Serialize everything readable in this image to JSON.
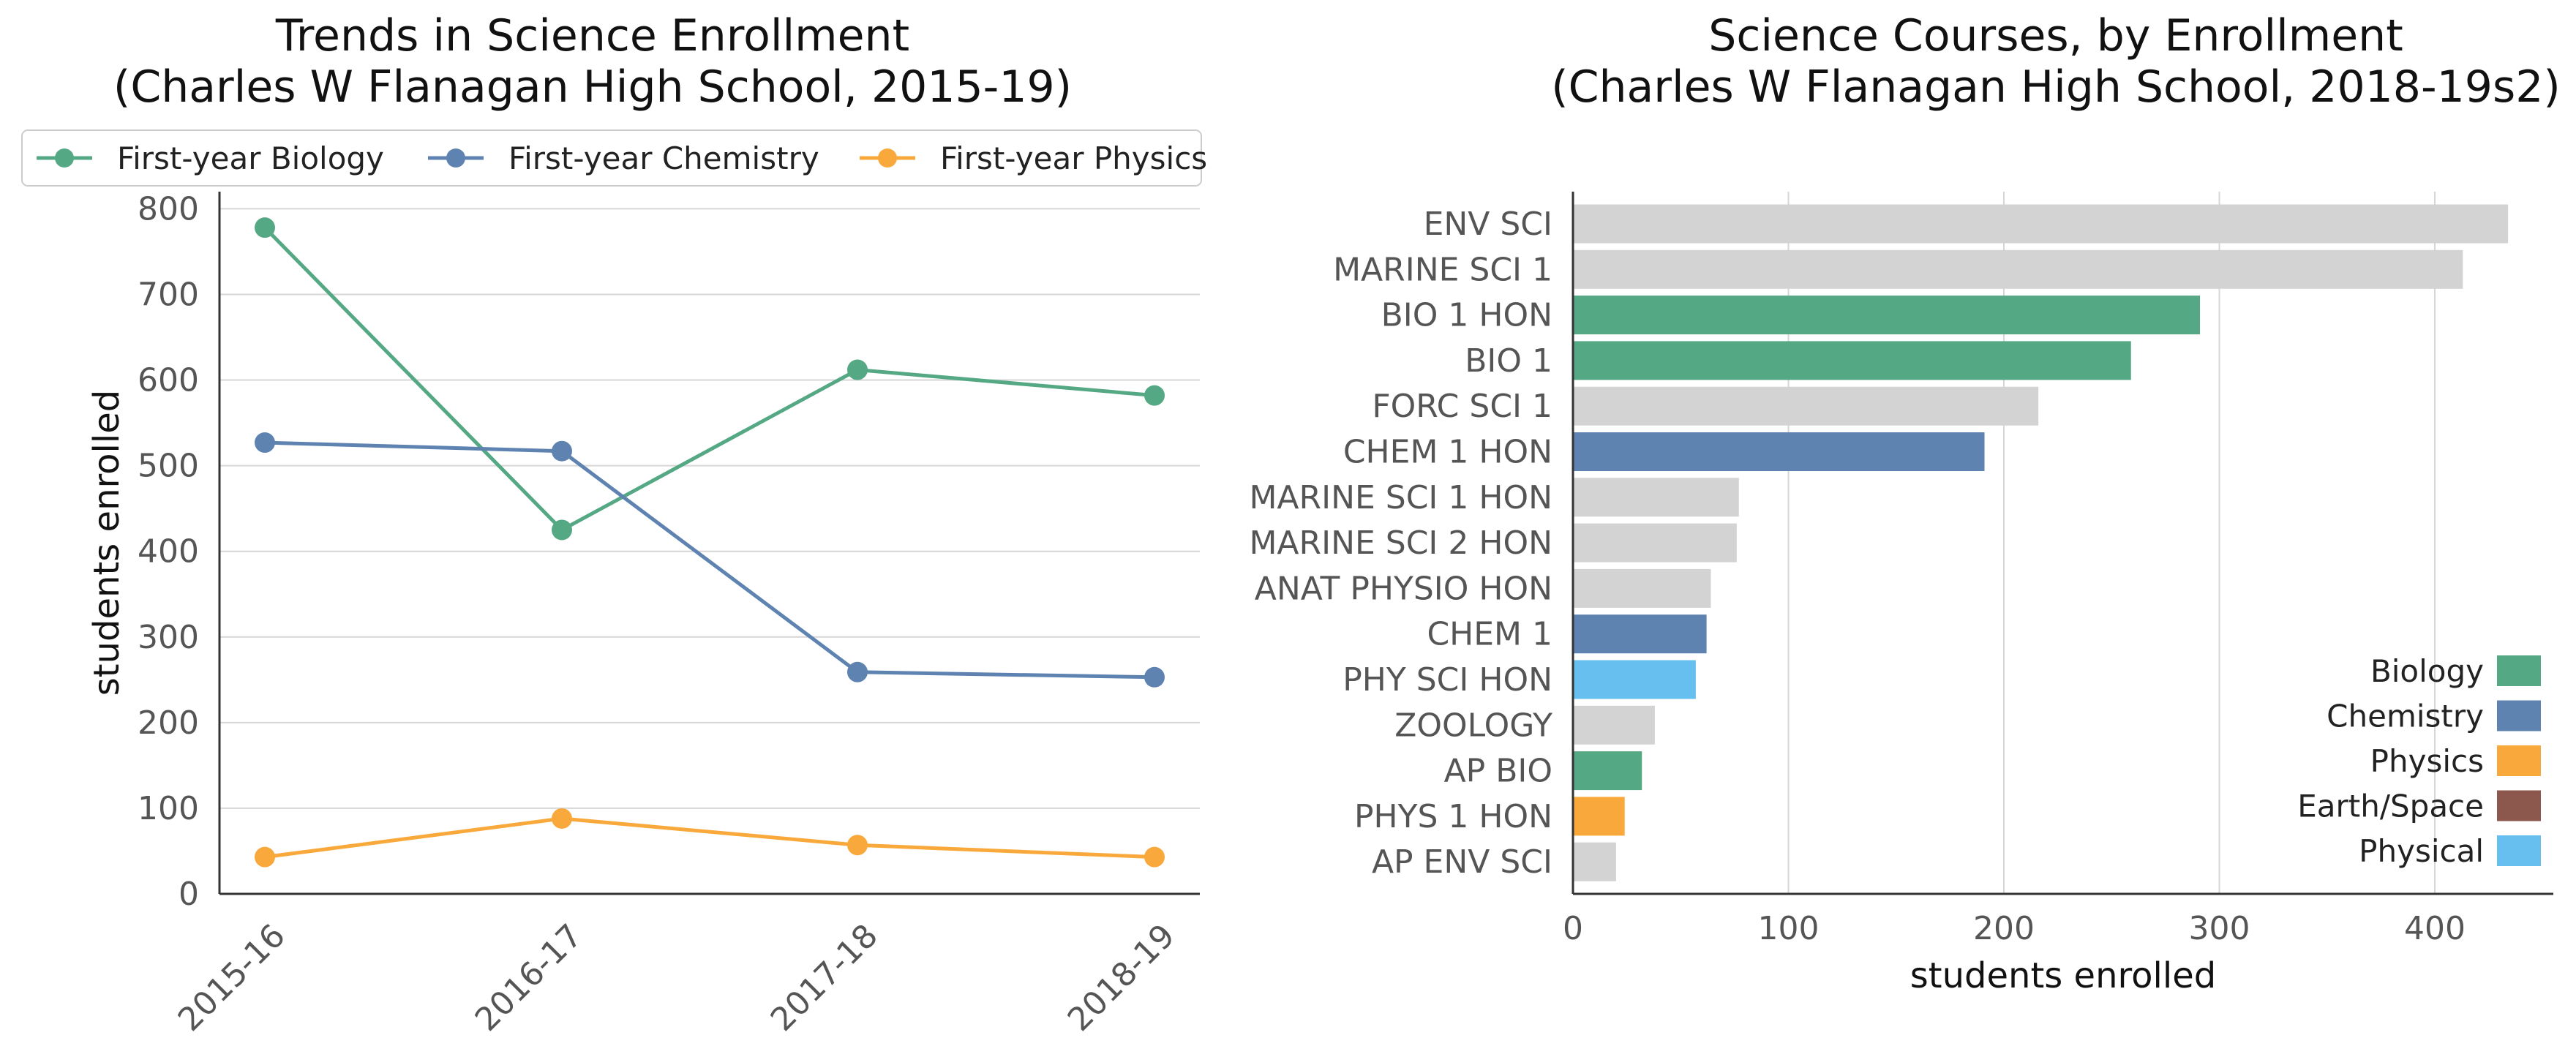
{
  "chart_data": [
    {
      "type": "line",
      "title_line1": "Trends in Science Enrollment",
      "title_line2": "(Charles W Flanagan High School, 2015-19)",
      "xlabel": "",
      "ylabel": "students enrolled",
      "categories": [
        "2015-16",
        "2016-17",
        "2017-18",
        "2018-19"
      ],
      "ylim": [
        0,
        820
      ],
      "yticks": [
        0,
        100,
        200,
        300,
        400,
        500,
        600,
        700,
        800
      ],
      "grid": "horizontal",
      "legend_position": "top",
      "series": [
        {
          "name": "First-year Biology",
          "color": "#55a884",
          "values": [
            778,
            425,
            612,
            582
          ]
        },
        {
          "name": "First-year Chemistry",
          "color": "#5f83b1",
          "values": [
            527,
            517,
            259,
            253
          ]
        },
        {
          "name": "First-year Physics",
          "color": "#f9a93b",
          "values": [
            43,
            88,
            57,
            43
          ]
        }
      ]
    },
    {
      "type": "bar",
      "orientation": "horizontal",
      "title_line1": "Science Courses, by Enrollment",
      "title_line2": "(Charles W Flanagan High School, 2018-19s2)",
      "xlabel": "students enrolled",
      "ylabel": "",
      "xlim": [
        0,
        455
      ],
      "xticks": [
        0,
        100,
        200,
        300,
        400
      ],
      "grid": "vertical",
      "legend_position": "bottom-right",
      "categories": [
        "ENV SCI",
        "MARINE SCI 1",
        "BIO 1 HON",
        "BIO 1",
        "FORC SCI 1",
        "CHEM 1 HON",
        "MARINE SCI 1 HON",
        "MARINE SCI 2 HON",
        "ANAT PHYSIO HON",
        "CHEM 1",
        "PHY SCI HON",
        "ZOOLOGY",
        "AP BIO",
        "PHYS 1 HON",
        "AP ENV SCI"
      ],
      "values": [
        434,
        413,
        291,
        259,
        216,
        191,
        77,
        76,
        64,
        62,
        57,
        38,
        32,
        24,
        20
      ],
      "groups": [
        "Other",
        "Other",
        "Biology",
        "Biology",
        "Other",
        "Chemistry",
        "Other",
        "Other",
        "Other",
        "Chemistry",
        "Physical",
        "Other",
        "Biology",
        "Physics",
        "Other"
      ],
      "group_colors": {
        "Biology": "#55a884",
        "Chemistry": "#5f83b1",
        "Physics": "#f9a93b",
        "Earth/Space": "#8c574c",
        "Physical": "#66bfee",
        "Other": "#d3d3d3"
      },
      "legend": [
        "Biology",
        "Chemistry",
        "Physics",
        "Earth/Space",
        "Physical"
      ]
    }
  ]
}
